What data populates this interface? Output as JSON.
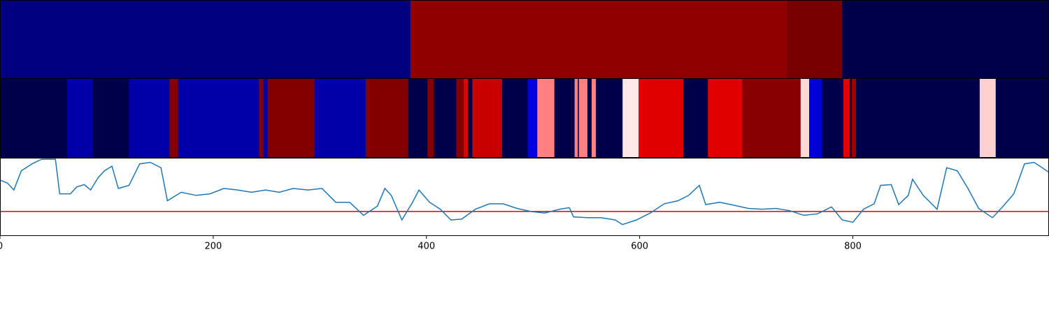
{
  "chart_data": [
    {
      "type": "strip",
      "xlim": [
        0,
        984
      ],
      "edges": [
        0,
        385,
        738,
        790,
        984
      ],
      "colors": [
        "#000080",
        "#900000",
        "#780000",
        "#00004a"
      ]
    },
    {
      "type": "strip",
      "xlim": [
        0,
        984
      ],
      "edges": [
        0,
        63,
        87,
        121,
        159,
        167,
        243,
        247,
        251,
        295,
        343,
        383,
        401,
        407,
        428,
        435,
        439,
        443,
        471,
        495,
        504,
        520,
        539,
        542,
        543,
        551,
        555,
        559,
        584,
        599,
        641,
        664,
        696,
        751,
        759,
        771,
        791,
        797,
        799,
        803,
        919,
        934,
        984
      ],
      "colors": [
        "#00004a",
        "#0000a8",
        "#00004a",
        "#0000a8",
        "#840000",
        "#0000a8",
        "#840000",
        "#0000a8",
        "#840000",
        "#0000a8",
        "#840000",
        "#00004a",
        "#840000",
        "#00004a",
        "#840000",
        "#e00000",
        "#00004a",
        "#c80000",
        "#00004a",
        "#0000e0",
        "#ff8080",
        "#00004a",
        "#ff8080",
        "#00004a",
        "#ff8080",
        "#00004a",
        "#ff8080",
        "#00004a",
        "#ffe8e8",
        "#e00000",
        "#00004a",
        "#e00000",
        "#880000",
        "#ffd8d8",
        "#0000d8",
        "#00004a",
        "#e00000",
        "#00004a",
        "#a00000",
        "#00004a",
        "#ffd0d0",
        "#00004a"
      ]
    },
    {
      "type": "line",
      "xlim": [
        0,
        984
      ],
      "ylim": [
        0,
        1
      ],
      "xticks": [
        0,
        200,
        400,
        600,
        800
      ],
      "color": "#1f77b4",
      "x": [
        0,
        7,
        13,
        20,
        30,
        39,
        52,
        56,
        66,
        72,
        79,
        85,
        92,
        98,
        105,
        111,
        121,
        131,
        141,
        151,
        157,
        170,
        184,
        197,
        210,
        223,
        236,
        249,
        262,
        275,
        289,
        302,
        315,
        328,
        341,
        354,
        361,
        367,
        377,
        387,
        393,
        403,
        413,
        423,
        433,
        446,
        459,
        472,
        485,
        498,
        511,
        525,
        534,
        538,
        551,
        564,
        577,
        584,
        597,
        610,
        623,
        636,
        646,
        656,
        662,
        675,
        689,
        702,
        715,
        728,
        741,
        754,
        767,
        780,
        790,
        800,
        810,
        820,
        826,
        836,
        843,
        852,
        856,
        866,
        879,
        888,
        898,
        908,
        918,
        931,
        941,
        951,
        961,
        970,
        984
      ],
      "values": [
        0.72,
        0.68,
        0.59,
        0.84,
        0.93,
        0.99,
        0.99,
        0.54,
        0.54,
        0.63,
        0.66,
        0.59,
        0.75,
        0.84,
        0.9,
        0.61,
        0.65,
        0.93,
        0.95,
        0.88,
        0.45,
        0.56,
        0.52,
        0.54,
        0.61,
        0.59,
        0.56,
        0.59,
        0.56,
        0.61,
        0.59,
        0.61,
        0.43,
        0.43,
        0.26,
        0.38,
        0.61,
        0.52,
        0.2,
        0.43,
        0.59,
        0.43,
        0.34,
        0.2,
        0.21,
        0.34,
        0.41,
        0.41,
        0.35,
        0.31,
        0.29,
        0.34,
        0.36,
        0.24,
        0.23,
        0.23,
        0.2,
        0.14,
        0.2,
        0.29,
        0.41,
        0.45,
        0.52,
        0.65,
        0.4,
        0.43,
        0.39,
        0.35,
        0.34,
        0.35,
        0.32,
        0.26,
        0.28,
        0.37,
        0.2,
        0.17,
        0.34,
        0.41,
        0.65,
        0.66,
        0.4,
        0.52,
        0.73,
        0.52,
        0.34,
        0.88,
        0.84,
        0.61,
        0.35,
        0.23,
        0.38,
        0.54,
        0.93,
        0.95,
        0.82
      ],
      "hline": {
        "value": 0.31,
        "color": "#e00000"
      }
    }
  ]
}
